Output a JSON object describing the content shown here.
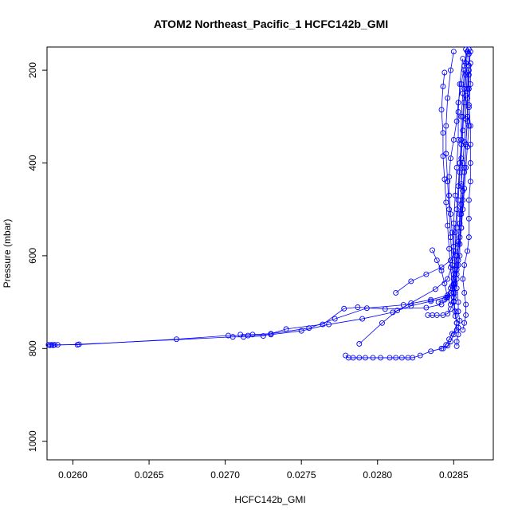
{
  "chart_data": {
    "type": "scatter",
    "title": "ATOM2 Northeast_Pacific_1 HCFC142b_GMI",
    "xlabel": "HCFC142b_GMI",
    "ylabel": "Pressure (mbar)",
    "xlim": [
      0.02583,
      0.02876
    ],
    "ylim": [
      1040,
      150
    ],
    "y_reversed": true,
    "grid": false,
    "legend": "none",
    "x_ticks": [
      0.026,
      0.0265,
      0.027,
      0.0275,
      0.028,
      0.0285
    ],
    "x_tick_labels": [
      "0.0260",
      "0.0265",
      "0.0270",
      "0.0275",
      "0.0280",
      "0.0285"
    ],
    "y_ticks": [
      200,
      400,
      600,
      800,
      1000
    ],
    "y_tick_labels": [
      "200",
      "400",
      "600",
      "800",
      "1000"
    ],
    "series": [
      {
        "points": [
          [
            0.02584,
            792
          ],
          [
            0.02586,
            792
          ],
          [
            0.02588,
            792
          ],
          [
            0.0259,
            792
          ],
          [
            0.02603,
            792
          ],
          [
            0.02668,
            780
          ],
          [
            0.02702,
            772
          ],
          [
            0.02715,
            772
          ],
          [
            0.0273,
            770
          ],
          [
            0.0275,
            762
          ],
          [
            0.02768,
            748
          ],
          [
            0.0279,
            736
          ],
          [
            0.0281,
            722
          ],
          [
            0.02822,
            708
          ],
          [
            0.02835,
            698
          ],
          [
            0.02845,
            690
          ],
          [
            0.02848,
            670
          ],
          [
            0.0285,
            640
          ],
          [
            0.02852,
            600
          ],
          [
            0.02855,
            540
          ],
          [
            0.02856,
            480
          ],
          [
            0.02857,
            420
          ],
          [
            0.02858,
            360
          ],
          [
            0.02859,
            300
          ],
          [
            0.02859,
            240
          ],
          [
            0.0286,
            190
          ],
          [
            0.0286,
            155
          ]
        ]
      },
      {
        "points": [
          [
            0.02585,
            793
          ],
          [
            0.02587,
            793
          ],
          [
            0.02604,
            791
          ],
          [
            0.02705,
            775
          ],
          [
            0.02712,
            775
          ],
          [
            0.02725,
            773
          ],
          [
            0.0274,
            758
          ],
          [
            0.02764,
            748
          ],
          [
            0.02778,
            714
          ],
          [
            0.02787,
            711
          ],
          [
            0.02805,
            715
          ],
          [
            0.02832,
            712
          ],
          [
            0.02842,
            705
          ],
          [
            0.0285,
            680
          ],
          [
            0.02852,
            630
          ],
          [
            0.02853,
            570
          ],
          [
            0.02854,
            510
          ],
          [
            0.02855,
            450
          ],
          [
            0.02855,
            390
          ],
          [
            0.02856,
            330
          ],
          [
            0.02857,
            270
          ],
          [
            0.02858,
            210
          ],
          [
            0.02859,
            160
          ]
        ]
      },
      {
        "points": [
          [
            0.0271,
            770
          ],
          [
            0.02718,
            770
          ],
          [
            0.0273,
            768
          ],
          [
            0.02755,
            756
          ],
          [
            0.02772,
            736
          ],
          [
            0.02793,
            713
          ],
          [
            0.02817,
            706
          ],
          [
            0.02835,
            695
          ],
          [
            0.02846,
            685
          ],
          [
            0.0285,
            660
          ],
          [
            0.02849,
            620
          ],
          [
            0.02848,
            560
          ],
          [
            0.02847,
            500
          ],
          [
            0.02846,
            440
          ],
          [
            0.02845,
            380
          ],
          [
            0.02845,
            320
          ],
          [
            0.02846,
            260
          ],
          [
            0.02848,
            200
          ],
          [
            0.0285,
            160
          ]
        ]
      },
      {
        "points": [
          [
            0.02779,
            815
          ],
          [
            0.02781,
            820
          ],
          [
            0.02784,
            820
          ],
          [
            0.02788,
            820
          ],
          [
            0.02792,
            820
          ],
          [
            0.02797,
            820
          ],
          [
            0.02802,
            820
          ],
          [
            0.02808,
            820
          ],
          [
            0.02812,
            820
          ],
          [
            0.02816,
            820
          ],
          [
            0.0282,
            820
          ],
          [
            0.02823,
            820
          ],
          [
            0.02828,
            815
          ],
          [
            0.02835,
            806
          ],
          [
            0.02842,
            800
          ],
          [
            0.02846,
            794
          ],
          [
            0.02848,
            785
          ],
          [
            0.0285,
            770
          ],
          [
            0.02852,
            745
          ],
          [
            0.02851,
            720
          ],
          [
            0.0285,
            690
          ],
          [
            0.0285,
            650
          ],
          [
            0.02851,
            600
          ],
          [
            0.02852,
            540
          ],
          [
            0.02853,
            480
          ],
          [
            0.02854,
            420
          ],
          [
            0.02855,
            360
          ],
          [
            0.02856,
            300
          ],
          [
            0.02857,
            240
          ],
          [
            0.02858,
            185
          ],
          [
            0.02858,
            155
          ]
        ]
      },
      {
        "points": [
          [
            0.02788,
            790
          ],
          [
            0.02803,
            745
          ],
          [
            0.02813,
            718
          ],
          [
            0.02822,
            702
          ],
          [
            0.02838,
            672
          ],
          [
            0.02846,
            650
          ],
          [
            0.02849,
            620
          ],
          [
            0.0285,
            580
          ],
          [
            0.0285,
            530
          ],
          [
            0.02851,
            470
          ],
          [
            0.02852,
            410
          ],
          [
            0.02853,
            350
          ],
          [
            0.02853,
            290
          ],
          [
            0.02854,
            230
          ],
          [
            0.02856,
            175
          ]
        ]
      },
      {
        "points": [
          [
            0.02812,
            680
          ],
          [
            0.02822,
            655
          ],
          [
            0.02832,
            640
          ],
          [
            0.02842,
            625
          ],
          [
            0.02848,
            610
          ],
          [
            0.02851,
            590
          ],
          [
            0.02851,
            550
          ],
          [
            0.02852,
            500
          ],
          [
            0.02853,
            450
          ],
          [
            0.02854,
            400
          ],
          [
            0.02855,
            350
          ],
          [
            0.02855,
            300
          ],
          [
            0.02856,
            250
          ],
          [
            0.02857,
            200
          ]
        ]
      },
      {
        "points": [
          [
            0.02833,
            728
          ],
          [
            0.02836,
            728
          ],
          [
            0.02839,
            728
          ],
          [
            0.02843,
            728
          ],
          [
            0.02846,
            725
          ],
          [
            0.02848,
            715
          ],
          [
            0.0285,
            698
          ],
          [
            0.02851,
            680
          ],
          [
            0.02852,
            650
          ],
          [
            0.02853,
            610
          ],
          [
            0.02854,
            560
          ],
          [
            0.02855,
            510
          ],
          [
            0.02856,
            460
          ],
          [
            0.02857,
            410
          ],
          [
            0.02858,
            360
          ],
          [
            0.02859,
            310
          ],
          [
            0.02859,
            260
          ],
          [
            0.0286,
            210
          ],
          [
            0.0286,
            165
          ]
        ]
      },
      {
        "points": [
          [
            0.02843,
            800
          ],
          [
            0.02845,
            792
          ],
          [
            0.02847,
            780
          ],
          [
            0.02849,
            768
          ],
          [
            0.02852,
            760
          ],
          [
            0.02852,
            745
          ],
          [
            0.02851,
            730
          ],
          [
            0.0285,
            700
          ],
          [
            0.02849,
            665
          ],
          [
            0.02848,
            625
          ],
          [
            0.02847,
            585
          ],
          [
            0.02846,
            535
          ],
          [
            0.02845,
            485
          ],
          [
            0.02844,
            435
          ],
          [
            0.02843,
            385
          ],
          [
            0.02843,
            335
          ],
          [
            0.02842,
            285
          ],
          [
            0.02843,
            235
          ],
          [
            0.02844,
            205
          ]
        ]
      },
      {
        "points": [
          [
            0.02852,
            795
          ],
          [
            0.02852,
            785
          ],
          [
            0.02853,
            770
          ],
          [
            0.02853,
            755
          ],
          [
            0.02854,
            740
          ],
          [
            0.02853,
            720
          ],
          [
            0.02853,
            700
          ],
          [
            0.02852,
            670
          ],
          [
            0.02851,
            630
          ],
          [
            0.0285,
            590
          ],
          [
            0.02849,
            550
          ],
          [
            0.02848,
            510
          ],
          [
            0.02847,
            470
          ],
          [
            0.02847,
            430
          ],
          [
            0.02848,
            390
          ],
          [
            0.0285,
            350
          ],
          [
            0.02852,
            310
          ],
          [
            0.02853,
            270
          ],
          [
            0.02855,
            230
          ],
          [
            0.02857,
            190
          ],
          [
            0.02859,
            160
          ]
        ]
      },
      {
        "points": [
          [
            0.02856,
            760
          ],
          [
            0.02857,
            745
          ],
          [
            0.02858,
            728
          ],
          [
            0.02858,
            705
          ],
          [
            0.02857,
            680
          ],
          [
            0.02856,
            650
          ],
          [
            0.02857,
            620
          ],
          [
            0.02859,
            590
          ],
          [
            0.0286,
            560
          ],
          [
            0.0286,
            520
          ],
          [
            0.0286,
            480
          ],
          [
            0.02861,
            440
          ],
          [
            0.02861,
            400
          ],
          [
            0.02861,
            360
          ],
          [
            0.02861,
            320
          ],
          [
            0.0286,
            280
          ],
          [
            0.0286,
            240
          ],
          [
            0.0286,
            200
          ],
          [
            0.02861,
            160
          ]
        ]
      },
      {
        "points": [
          [
            0.02836,
            588
          ],
          [
            0.02839,
            610
          ],
          [
            0.02842,
            632
          ],
          [
            0.02844,
            660
          ],
          [
            0.02846,
            690
          ],
          [
            0.02848,
            705
          ],
          [
            0.0285,
            690
          ],
          [
            0.02851,
            660
          ],
          [
            0.02852,
            620
          ],
          [
            0.02853,
            575
          ],
          [
            0.02854,
            530
          ],
          [
            0.02855,
            490
          ],
          [
            0.02855,
            445
          ],
          [
            0.02856,
            400
          ],
          [
            0.02857,
            355
          ],
          [
            0.02858,
            305
          ],
          [
            0.02858,
            255
          ],
          [
            0.02859,
            205
          ]
        ]
      },
      {
        "points": [
          [
            0.0284,
            700
          ],
          [
            0.02844,
            695
          ],
          [
            0.02846,
            690
          ],
          [
            0.02848,
            680
          ],
          [
            0.0285,
            662
          ],
          [
            0.02852,
            640
          ],
          [
            0.02853,
            620
          ],
          [
            0.02854,
            600
          ],
          [
            0.02854,
            575
          ],
          [
            0.02855,
            540
          ],
          [
            0.02856,
            500
          ],
          [
            0.02857,
            455
          ],
          [
            0.02858,
            410
          ],
          [
            0.02859,
            365
          ],
          [
            0.0286,
            320
          ],
          [
            0.0286,
            275
          ],
          [
            0.02861,
            230
          ],
          [
            0.02861,
            185
          ]
        ]
      }
    ]
  }
}
